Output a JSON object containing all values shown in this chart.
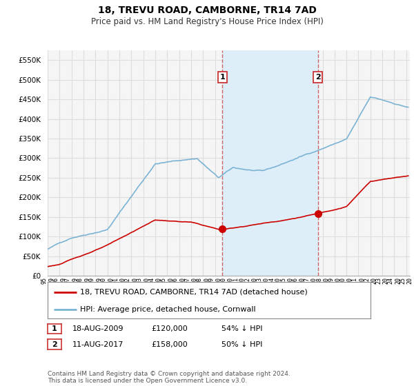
{
  "title": "18, TREVU ROAD, CAMBORNE, TR14 7AD",
  "subtitle": "Price paid vs. HM Land Registry's House Price Index (HPI)",
  "ylim": [
    0,
    575000
  ],
  "yticks": [
    0,
    50000,
    100000,
    150000,
    200000,
    250000,
    300000,
    350000,
    400000,
    450000,
    500000,
    550000
  ],
  "sale1_x": 2009.63,
  "sale1_y": 120000,
  "sale2_x": 2017.61,
  "sale2_y": 158000,
  "hpi_color": "#7ab3d4",
  "price_color": "#cc0000",
  "vline_color": "#cc6666",
  "highlight_color": "#ddeef8",
  "background_color": "#f0f4f8",
  "grid_color": "#dddddd",
  "title_fontsize": 10,
  "subtitle_fontsize": 8.5,
  "tick_fontsize": 7.5,
  "legend_fontsize": 8,
  "footnote_fontsize": 6.5,
  "footnote": "Contains HM Land Registry data © Crown copyright and database right 2024.\nThis data is licensed under the Open Government Licence v3.0.",
  "legend1": "18, TREVU ROAD, CAMBORNE, TR14 7AD (detached house)",
  "legend2": "HPI: Average price, detached house, Cornwall",
  "table_row1": [
    "1",
    "18-AUG-2009",
    "£120,000",
    "54% ↓ HPI"
  ],
  "table_row2": [
    "2",
    "11-AUG-2017",
    "£158,000",
    "50% ↓ HPI"
  ],
  "xmin": 1995,
  "xmax": 2025.3
}
